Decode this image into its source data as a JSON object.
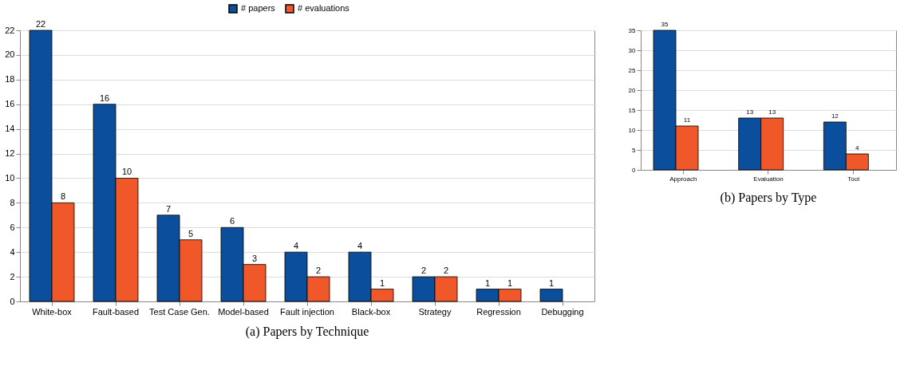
{
  "chart_data": [
    {
      "type": "bar",
      "title": "(a)  Papers by Technique",
      "categories": [
        "White-box",
        "Fault-based",
        "Test Case Gen.",
        "Model-based",
        "Fault injection",
        "Black-box",
        "Strategy",
        "Regression",
        "Debugging"
      ],
      "series": [
        {
          "name": "# papers",
          "color": "#0b4f9c",
          "values": [
            22,
            16,
            7,
            6,
            4,
            4,
            2,
            1,
            1
          ]
        },
        {
          "name": "# evaluations",
          "color": "#f0582a",
          "values": [
            8,
            10,
            5,
            3,
            2,
            1,
            2,
            1,
            null
          ]
        }
      ],
      "ylim": [
        0,
        22
      ],
      "yticks": [
        0,
        2,
        4,
        6,
        8,
        10,
        12,
        14,
        16,
        18,
        20,
        22
      ],
      "grid": "y",
      "legend": "top",
      "data_labels": true
    },
    {
      "type": "bar",
      "title": "(b)  Papers by Type",
      "categories": [
        "Approach",
        "Evaluation",
        "Tool"
      ],
      "series": [
        {
          "name": "# papers",
          "color": "#0b4f9c",
          "values": [
            35,
            13,
            12
          ]
        },
        {
          "name": "# evaluations",
          "color": "#f0582a",
          "values": [
            11,
            13,
            4
          ]
        }
      ],
      "ylim": [
        0,
        35
      ],
      "yticks": [
        0,
        5,
        10,
        15,
        20,
        25,
        30,
        35
      ],
      "grid": "y",
      "legend": "top",
      "data_labels": true
    }
  ]
}
